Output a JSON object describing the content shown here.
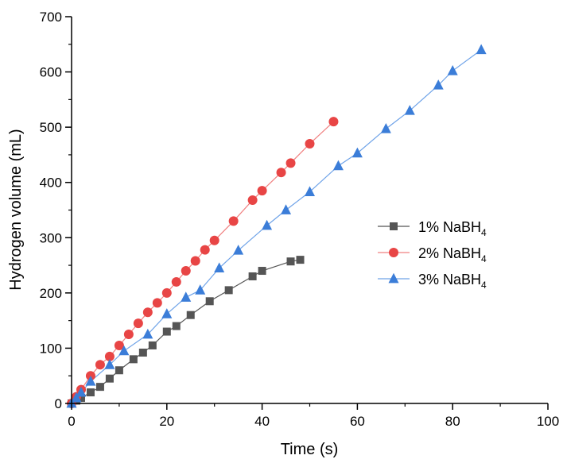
{
  "chart_data": {
    "type": "line",
    "xlabel": "Time (s)",
    "ylabel": "Hydrogen volume (mL)",
    "xlim": [
      0,
      100
    ],
    "ylim": [
      0,
      700
    ],
    "xticks": [
      0,
      20,
      40,
      60,
      80,
      100
    ],
    "yticks": [
      0,
      100,
      200,
      300,
      400,
      500,
      600,
      700
    ],
    "grid": false,
    "legend_position": "right",
    "series": [
      {
        "name": "1% NaBH4",
        "label_main": "1% NaBH",
        "label_sub": "4",
        "marker": "square",
        "color": "#555555",
        "line_color": "#555555",
        "x": [
          0,
          1,
          2,
          4,
          6,
          8,
          10,
          13,
          15,
          17,
          20,
          22,
          25,
          29,
          33,
          38,
          40,
          46,
          48
        ],
        "y": [
          0,
          5,
          10,
          20,
          30,
          45,
          60,
          80,
          92,
          105,
          130,
          140,
          160,
          185,
          205,
          230,
          240,
          257,
          260
        ]
      },
      {
        "name": "2% NaBH4",
        "label_main": "2% NaBH",
        "label_sub": "4",
        "marker": "circle",
        "color": "#E84545",
        "line_color": "#F08080",
        "x": [
          0,
          1,
          2,
          4,
          6,
          8,
          10,
          12,
          14,
          16,
          18,
          20,
          22,
          24,
          26,
          28,
          30,
          34,
          38,
          40,
          44,
          46,
          50,
          55
        ],
        "y": [
          0,
          12,
          25,
          50,
          70,
          85,
          105,
          125,
          145,
          165,
          182,
          200,
          220,
          240,
          258,
          278,
          295,
          330,
          368,
          385,
          418,
          435,
          470,
          510
        ]
      },
      {
        "name": "3% NaBH4",
        "label_main": "3% NaBH",
        "label_sub": "4",
        "marker": "triangle",
        "color": "#3B7DD8",
        "line_color": "#6FA3E8",
        "x": [
          0,
          1,
          2,
          4,
          8,
          11,
          16,
          20,
          24,
          27,
          31,
          35,
          41,
          45,
          50,
          56,
          60,
          66,
          71,
          77,
          80,
          86
        ],
        "y": [
          0,
          10,
          20,
          40,
          70,
          95,
          125,
          162,
          192,
          205,
          245,
          277,
          322,
          350,
          383,
          430,
          453,
          497,
          530,
          576,
          602,
          640
        ]
      }
    ]
  }
}
